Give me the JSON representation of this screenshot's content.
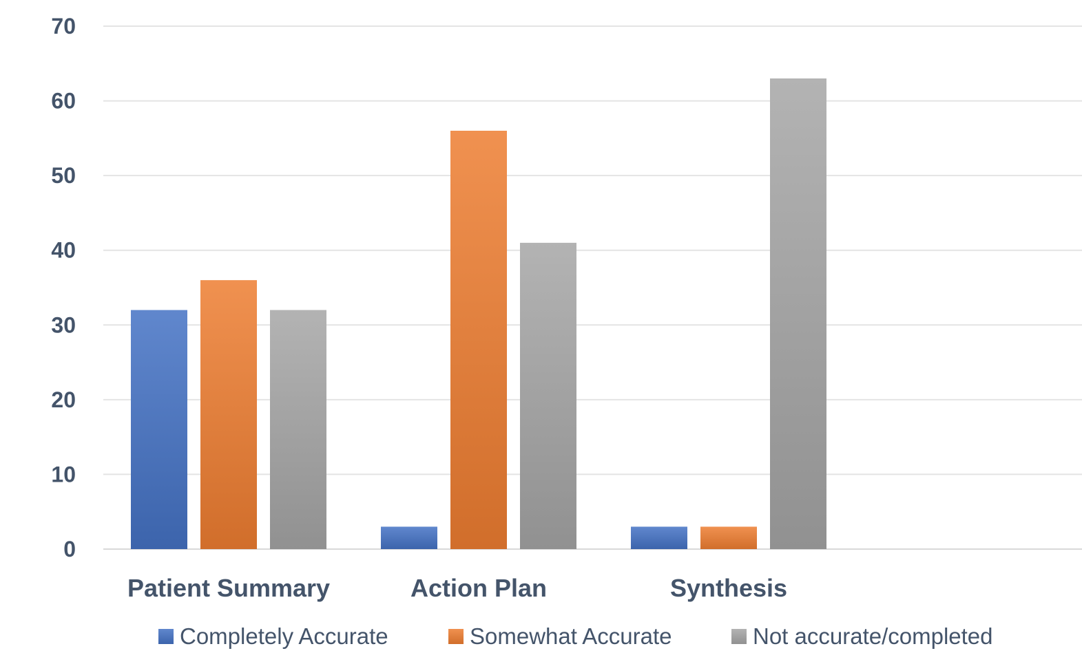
{
  "chart_data": {
    "type": "bar",
    "title": "",
    "xlabel": "",
    "ylabel": "",
    "categories": [
      "Patient Summary",
      "Action Plan",
      "Synthesis"
    ],
    "series": [
      {
        "name": "Completely Accurate",
        "values": [
          32,
          3,
          3
        ],
        "color": "#4472c4"
      },
      {
        "name": "Somewhat Accurate",
        "values": [
          36,
          56,
          3
        ],
        "color": "#ed7d31"
      },
      {
        "name": "Not accurate/completed",
        "values": [
          32,
          41,
          63
        ],
        "color": "#a5a5a5"
      }
    ],
    "ylim": [
      0,
      70
    ],
    "yticks": [
      0,
      10,
      20,
      30,
      40,
      50,
      60,
      70
    ],
    "grid": true,
    "legend": "bottom"
  }
}
